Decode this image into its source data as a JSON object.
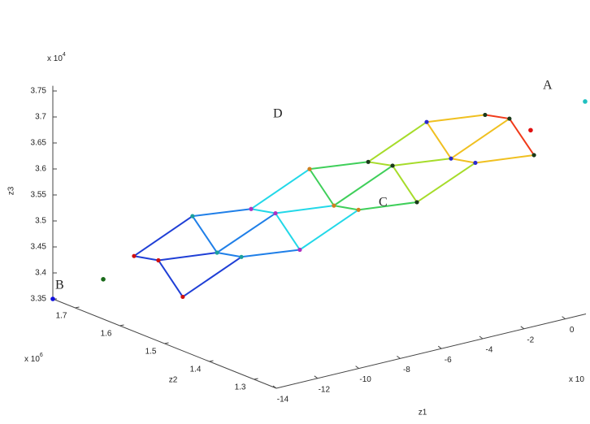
{
  "chart_data": {
    "type": "mesh3d",
    "xlabel": "z1",
    "ylabel": "z2",
    "zlabel": "z3",
    "x_multiplier": {
      "base": "x 10"
    },
    "y_multiplier": {
      "base": "x 10",
      "exponent": "6"
    },
    "z_multiplier": {
      "base": "x 10",
      "exponent": "4"
    },
    "xlim": [
      -14,
      1
    ],
    "ylim": [
      1.25,
      1.75
    ],
    "zlim": [
      3.35,
      3.76
    ],
    "xticks": [
      -14,
      -12,
      -10,
      -8,
      -6,
      -4,
      -2,
      0
    ],
    "yticks": [
      1.3,
      1.4,
      1.5,
      1.6,
      1.7
    ],
    "zticks": [
      3.35,
      3.4,
      3.45,
      3.5,
      3.55,
      3.6,
      3.65,
      3.7,
      3.75
    ],
    "mesh": {
      "x": [
        [
          -12.23,
          -10.59,
          -8.94,
          -7.3,
          -5.65,
          -4.01,
          -2.37
        ],
        [
          -11.7,
          -10.05,
          -8.41,
          -6.77,
          -5.12,
          -3.48,
          -1.84
        ],
        [
          -11.17,
          -9.52,
          -7.88,
          -6.23,
          -4.59,
          -2.95,
          -1.3
        ]
      ],
      "y": [
        [
          1.65,
          1.595,
          1.54,
          1.485,
          1.43,
          1.375,
          1.32
        ],
        [
          1.62,
          1.565,
          1.51,
          1.455,
          1.4,
          1.345,
          1.29
        ],
        [
          1.59,
          1.535,
          1.48,
          1.425,
          1.37,
          1.315,
          1.26
        ]
      ],
      "z": [
        [
          3.45,
          3.53,
          3.547,
          3.627,
          3.644,
          3.724,
          3.741
        ],
        [
          3.447,
          3.465,
          3.544,
          3.562,
          3.642,
          3.659,
          3.739
        ],
        [
          3.382,
          3.462,
          3.479,
          3.559,
          3.577,
          3.656,
          3.674
        ]
      ],
      "column_colors": [
        "#1f3fd6",
        "#1f7fe8",
        "#22d8e8",
        "#3fcf5a",
        "#a6dc2a",
        "#f0c020",
        "#f03a1a"
      ],
      "marker_colors": [
        "#d01010",
        "#1a9f9f",
        "#b030c0",
        "#d08020",
        "#1a3a1a",
        "#2a2ad0",
        "#1a3a1a"
      ]
    },
    "points": {
      "x": [
        -14,
        -12.64,
        -1.68,
        0.96
      ],
      "y": [
        1.75,
        1.7,
        1.25,
        1.25
      ],
      "z": [
        3.35,
        3.392,
        3.729,
        3.759
      ],
      "colors": [
        "#1010e0",
        "#1a6a1a",
        "#e01010",
        "#20c0c0"
      ]
    },
    "annotations": [
      "A",
      "B",
      "C",
      "D"
    ]
  }
}
